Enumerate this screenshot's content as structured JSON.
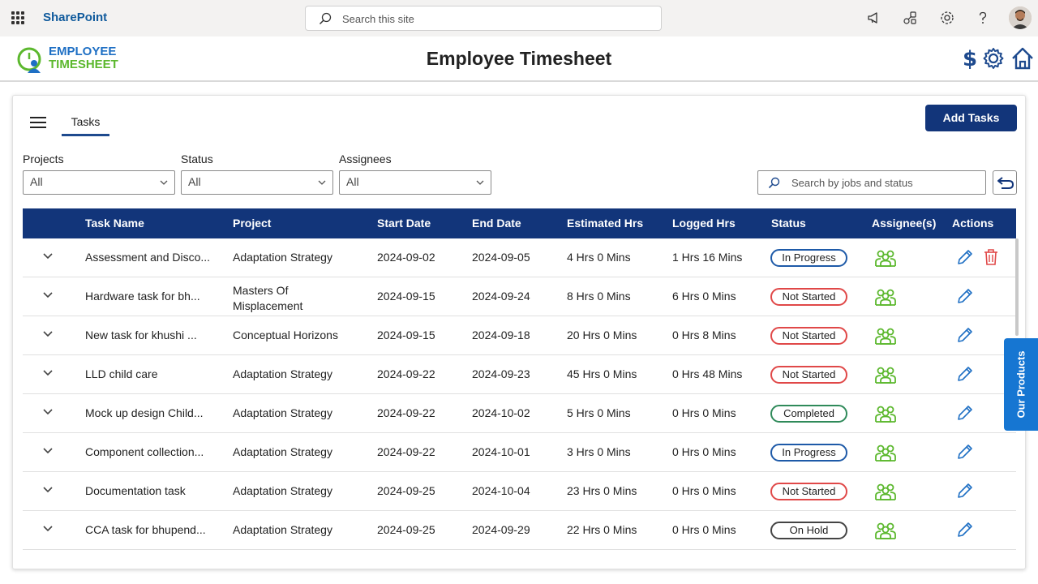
{
  "suitebar": {
    "app_name": "SharePoint",
    "search_placeholder": "Search this site",
    "icons": [
      "megaphone-icon",
      "share-icon",
      "settings-icon",
      "help-icon"
    ]
  },
  "header": {
    "logo_line1": "EMPLOYEE",
    "logo_line2": "TIMESHEET",
    "title": "Employee Timesheet",
    "icons": [
      "dollar-icon",
      "gear-icon",
      "home-icon"
    ]
  },
  "toolbar": {
    "tab_label": "Tasks",
    "add_button": "Add Tasks"
  },
  "filters": {
    "projects": {
      "label": "Projects",
      "value": "All"
    },
    "status": {
      "label": "Status",
      "value": "All"
    },
    "assignees": {
      "label": "Assignees",
      "value": "All"
    },
    "search_placeholder": "Search by jobs and status"
  },
  "table": {
    "columns": [
      "Task Name",
      "Project",
      "Start Date",
      "End Date",
      "Estimated Hrs",
      "Logged Hrs",
      "Status",
      "Assignee(s)",
      "Actions"
    ],
    "rows": [
      {
        "task": "Assessment and Disco...",
        "project": "Adaptation Strategy",
        "start": "2024-09-02",
        "end": "2024-09-05",
        "est": "4 Hrs 0 Mins",
        "logged": "1 Hrs 16 Mins",
        "status": "In Progress",
        "status_kind": "progress",
        "deletable": true
      },
      {
        "task": "Hardware task for bh...",
        "project": "Masters Of Misplacement",
        "start": "2024-09-15",
        "end": "2024-09-24",
        "est": "8 Hrs 0 Mins",
        "logged": "6 Hrs 0 Mins",
        "status": "Not Started",
        "status_kind": "notstarted",
        "deletable": false
      },
      {
        "task": "New task for khushi ...",
        "project": "Conceptual Horizons",
        "start": "2024-09-15",
        "end": "2024-09-18",
        "est": "20 Hrs 0 Mins",
        "logged": "0 Hrs 8 Mins",
        "status": "Not Started",
        "status_kind": "notstarted",
        "deletable": false
      },
      {
        "task": "LLD child care",
        "project": "Adaptation Strategy",
        "start": "2024-09-22",
        "end": "2024-09-23",
        "est": "45 Hrs 0 Mins",
        "logged": "0 Hrs 48 Mins",
        "status": "Not Started",
        "status_kind": "notstarted",
        "deletable": false
      },
      {
        "task": "Mock up design Child...",
        "project": "Adaptation Strategy",
        "start": "2024-09-22",
        "end": "2024-10-02",
        "est": "5 Hrs 0 Mins",
        "logged": "0 Hrs 0 Mins",
        "status": "Completed",
        "status_kind": "completed",
        "deletable": false
      },
      {
        "task": "Component collection...",
        "project": "Adaptation Strategy",
        "start": "2024-09-22",
        "end": "2024-10-01",
        "est": "3 Hrs 0 Mins",
        "logged": "0 Hrs 0 Mins",
        "status": "In Progress",
        "status_kind": "progress",
        "deletable": false
      },
      {
        "task": "Documentation task",
        "project": "Adaptation Strategy",
        "start": "2024-09-25",
        "end": "2024-10-04",
        "est": "23 Hrs 0 Mins",
        "logged": "0 Hrs 0 Mins",
        "status": "Not Started",
        "status_kind": "notstarted",
        "deletable": false
      },
      {
        "task": "CCA task for bhupend...",
        "project": "Adaptation Strategy",
        "start": "2024-09-25",
        "end": "2024-09-29",
        "est": "22 Hrs 0 Mins",
        "logged": "0 Hrs 0 Mins",
        "status": "On Hold",
        "status_kind": "hold",
        "deletable": false
      }
    ]
  },
  "side_tab": {
    "label": "Our Products"
  },
  "colors": {
    "header_blue": "#12357a",
    "assignee_green": "#5cb82e",
    "edit_blue": "#1e6fc4",
    "delete_red": "#e04848"
  }
}
